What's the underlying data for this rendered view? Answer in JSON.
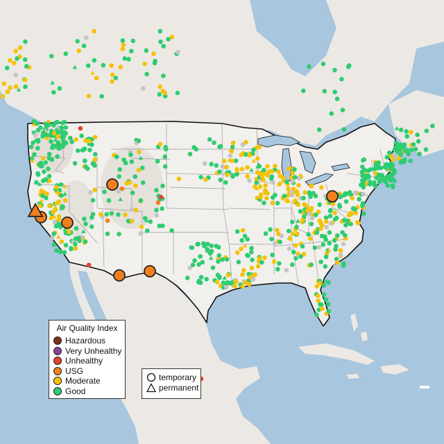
{
  "legend": {
    "title": "Air Quality Index",
    "categories": [
      {
        "label": "Hazardous",
        "color": "#7e2d1a"
      },
      {
        "label": "Very Unhealthy",
        "color": "#8f3f97"
      },
      {
        "label": "Unhealthy",
        "color": "#e8412b"
      },
      {
        "label": "USG",
        "color": "#f0801e"
      },
      {
        "label": "Moderate",
        "color": "#f5c20a"
      },
      {
        "label": "Good",
        "color": "#2ecc71"
      }
    ]
  },
  "shape_legend": {
    "items": [
      {
        "label": "temporary",
        "shape": "circle-icon"
      },
      {
        "label": "permanent",
        "shape": "triangle-icon"
      }
    ]
  },
  "colors": {
    "ocean": "#a8c6de",
    "land": "#ece9e4",
    "us_land": "#f1f0ed",
    "mountain_shade": "#d8d2ca",
    "border": "#111111",
    "state_lines": "#9a9a9a",
    "inactive": "#c4c4c4"
  }
}
